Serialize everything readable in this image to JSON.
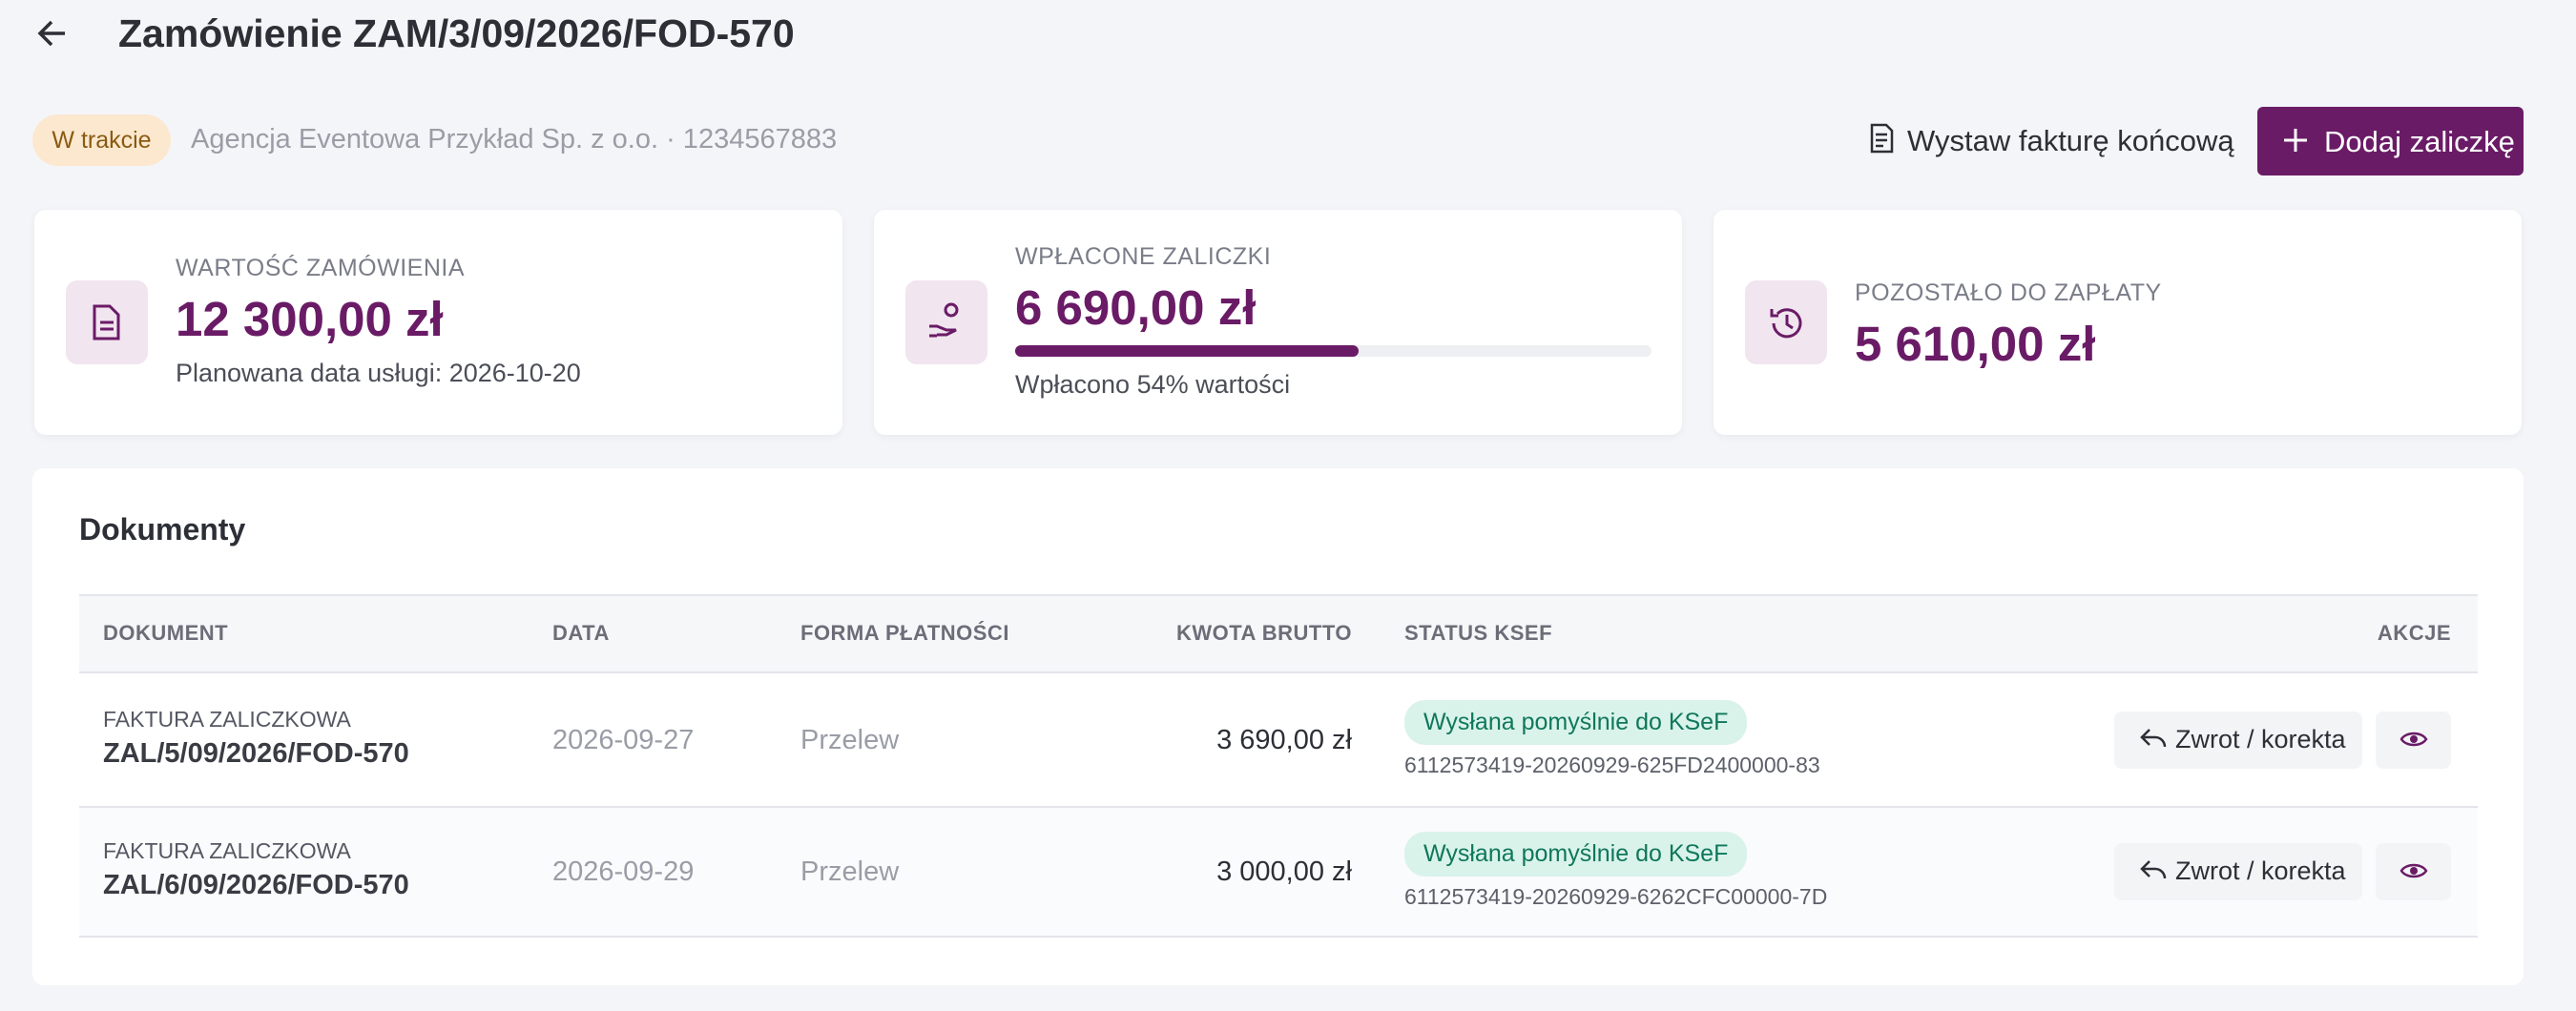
{
  "header": {
    "title": "Zamówienie ZAM/3/09/2026/FOD-570",
    "status": "W trakcie",
    "company": "Agencja Eventowa Przykład Sp. z o.o. · 1234567883"
  },
  "actions": {
    "final_invoice": "Wystaw fakturę końcową",
    "add_advance": "Dodaj zaliczkę"
  },
  "cards": [
    {
      "label": "WARTOŚĆ ZAMÓWIENIA",
      "value": "12 300,00 zł",
      "note": "Planowana data usługi: 2026-10-20"
    },
    {
      "label": "WPŁACONE ZALICZKI",
      "value": "6 690,00 zł",
      "progress_percent": 54,
      "note": "Wpłacono 54% wartości"
    },
    {
      "label": "POZOSTAŁO DO ZAPŁATY",
      "value": "5 610,00 zł"
    }
  ],
  "documents": {
    "title": "Dokumenty",
    "columns": [
      "DOKUMENT",
      "DATA",
      "FORMA PŁATNOŚCI",
      "KWOTA BRUTTO",
      "STATUS KSEF",
      "AKCJE"
    ],
    "rows": [
      {
        "type": "FAKTURA ZALICZKOWA",
        "number": "ZAL/5/09/2026/FOD-570",
        "date": "2026-09-27",
        "payment": "Przelew",
        "amount": "3 690,00 zł",
        "ksef_status": "Wysłana pomyślnie do KSeF",
        "ksef_id": "6112573419-20260929-625FD2400000-83",
        "action": "Zwrot / korekta"
      },
      {
        "type": "FAKTURA ZALICZKOWA",
        "number": "ZAL/6/09/2026/FOD-570",
        "date": "2026-09-29",
        "payment": "Przelew",
        "amount": "3 000,00 zł",
        "ksef_status": "Wysłana pomyślnie do KSeF",
        "ksef_id": "6112573419-20260929-6262CFC00000-7D",
        "action": "Zwrot / korekta"
      }
    ]
  }
}
